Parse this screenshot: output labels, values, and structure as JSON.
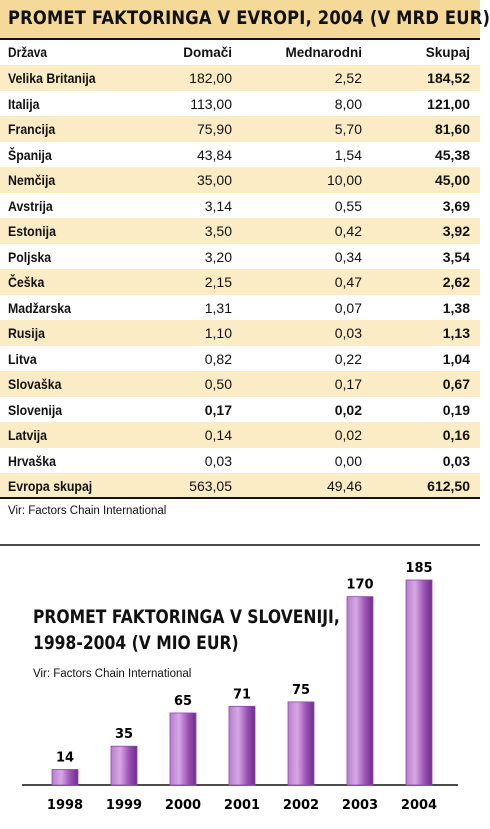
{
  "table": {
    "title": "PROMET FAKTORINGA V EVROPI, 2004 (V MRD EUR)",
    "columns": [
      "Država",
      "Domači",
      "Mednarodni",
      "Skupaj"
    ],
    "rows": [
      [
        "Velika Britanija",
        "182,00",
        "2,52",
        "184,52"
      ],
      [
        "Italija",
        "113,00",
        "8,00",
        "121,00"
      ],
      [
        "Francija",
        "75,90",
        "5,70",
        "81,60"
      ],
      [
        "Španija",
        "43,84",
        "1,54",
        "45,38"
      ],
      [
        "Nemčija",
        "35,00",
        "10,00",
        "45,00"
      ],
      [
        "Avstrija",
        "3,14",
        "0,55",
        "3,69"
      ],
      [
        "Estonija",
        "3,50",
        "0,42",
        "3,92"
      ],
      [
        "Poljska",
        "3,20",
        "0,34",
        "3,54"
      ],
      [
        "Češka",
        "2,15",
        "0,47",
        "2,62"
      ],
      [
        "Madžarska",
        "1,31",
        "0,07",
        "1,38"
      ],
      [
        "Rusija",
        "1,10",
        "0,03",
        "1,13"
      ],
      [
        "Litva",
        "0,82",
        "0,22",
        "1,04"
      ],
      [
        "Slovaška",
        "0,50",
        "0,17",
        "0,67"
      ],
      [
        "Slovenija",
        "0,17",
        "0,02",
        "0,19"
      ],
      [
        "Latvija",
        "0,14",
        "0,02",
        "0,16"
      ],
      [
        "Hrvaška",
        "0,03",
        "0,00",
        "0,03"
      ],
      [
        "Evropa skupaj",
        "563,05",
        "49,46",
        "612,50"
      ]
    ],
    "source": "Vir: Factors Chain International"
  },
  "chart_data": {
    "type": "bar",
    "title_line1": "PROMET FAKTORINGA V SLOVENIJI,",
    "title_line2": "1998-2004 (V MIO EUR)",
    "source": "Vir: Factors Chain International",
    "categories": [
      "1998",
      "1999",
      "2000",
      "2001",
      "2002",
      "2003",
      "2004"
    ],
    "values": [
      14,
      35,
      65,
      71,
      75,
      170,
      185
    ],
    "bar_color": "#8f45a8",
    "xlabel": "",
    "ylabel": ""
  },
  "colors": {
    "header_fill": "#f4d998",
    "stripe_fill": "#fbecc5"
  }
}
